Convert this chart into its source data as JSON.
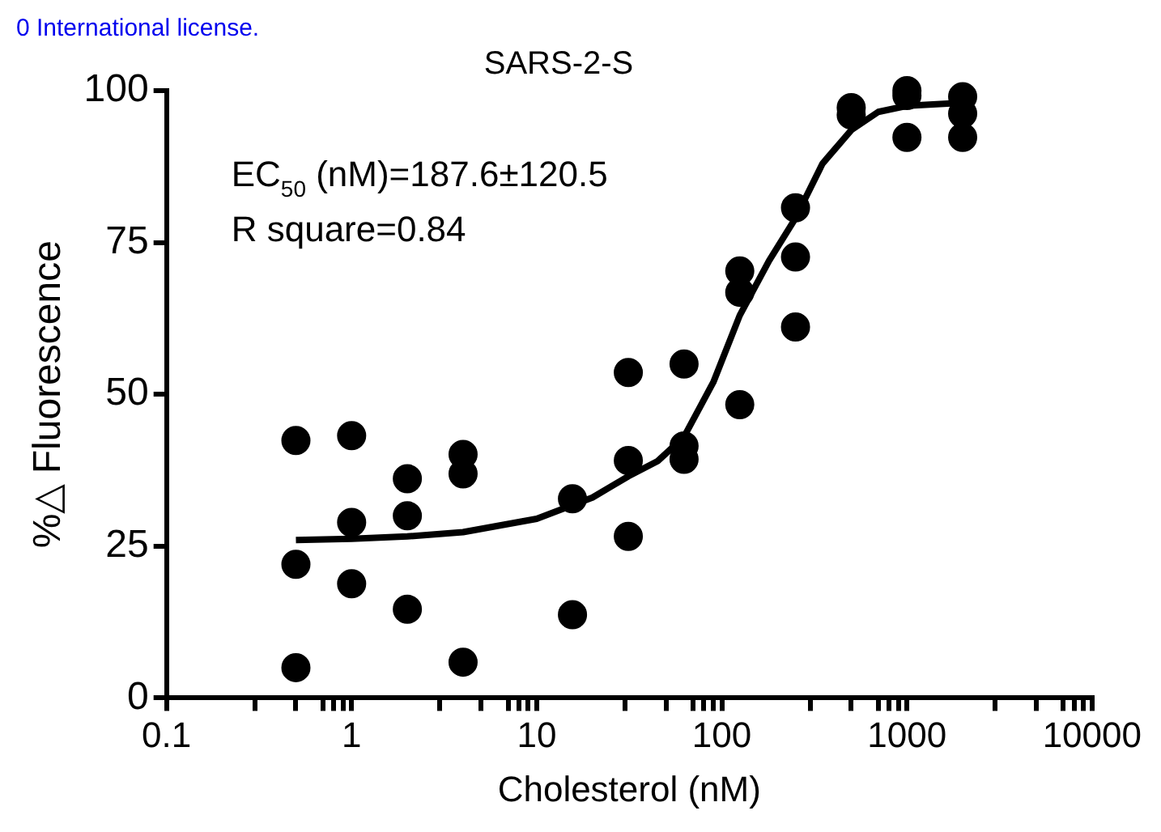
{
  "chart_data": {
    "type": "scatter",
    "title": "SARS-2-S",
    "xlabel": "Cholesterol (nM)",
    "ylabel": "%△ Fluorescence",
    "annotations": [
      "0 International license.",
      "EC$_{50}$ (nM)=187.6±120.5",
      "R square=0.84"
    ],
    "series": [
      {
        "type": "scatter",
        "color": "#000000",
        "marker": "circle",
        "x": [
          0.5,
          0.5,
          0.5,
          1,
          1,
          1,
          2,
          2,
          2,
          4,
          4,
          4,
          15.6,
          15.6,
          31.25,
          31.25,
          31.25,
          62.5,
          62.5,
          62.5,
          125,
          125,
          125,
          250,
          250,
          250,
          500,
          500,
          1000,
          1000,
          1000,
          2000,
          2000,
          2000
        ],
        "values": [
          42.4,
          22,
          5,
          43.2,
          28.9,
          18.8,
          36.1,
          30,
          14.6,
          40.1,
          36.9,
          5.9,
          32.8,
          13.7,
          53.6,
          39.1,
          26.6,
          55,
          41.5,
          39.3,
          70.3,
          66.8,
          48.3,
          80.7,
          72.6,
          61.1,
          97.2,
          96,
          100,
          99.2,
          92.3,
          99,
          96.2,
          92.3
        ]
      },
      {
        "type": "line",
        "color": "#000000",
        "marker": "none",
        "x": [
          0.5,
          1,
          2,
          4,
          10,
          20,
          31.25,
          45,
          62.5,
          90,
          125,
          180,
          250,
          350,
          500,
          700,
          1000,
          2000
        ],
        "values": [
          26,
          26.2,
          26.6,
          27.3,
          29.5,
          33,
          36.5,
          39,
          43,
          52,
          63,
          72,
          79,
          88,
          93.5,
          96.5,
          97.5,
          98
        ]
      }
    ],
    "xlim": [
      0.1,
      10000
    ],
    "xticks": [
      0.1,
      {
        "value": 0.3,
        "label": null
      },
      {
        "value": 0.5,
        "label": null
      },
      {
        "value": 0.7,
        "label": null
      },
      {
        "value": 0.8,
        "label": null
      },
      {
        "value": 0.9,
        "label": null
      },
      1,
      {
        "value": 3,
        "label": null
      },
      {
        "value": 5,
        "label": null
      },
      {
        "value": 7,
        "label": null
      },
      {
        "value": 8,
        "label": null
      },
      {
        "value": 9,
        "label": null
      },
      10,
      {
        "value": 30,
        "label": null
      },
      {
        "value": 50,
        "label": null
      },
      {
        "value": 70,
        "label": null
      },
      {
        "value": 80,
        "label": null
      },
      {
        "value": 90,
        "label": null
      },
      100,
      {
        "value": 300,
        "label": null
      },
      {
        "value": 500,
        "label": null
      },
      {
        "value": 700,
        "label": null
      },
      {
        "value": 800,
        "label": null
      },
      {
        "value": 900,
        "label": null
      },
      1000,
      {
        "value": 3000,
        "label": null
      },
      {
        "value": 5000,
        "label": null
      },
      {
        "value": 7000,
        "label": null
      },
      {
        "value": 8000,
        "label": null
      },
      {
        "value": 9000,
        "label": null
      },
      10000
    ],
    "ylim": [
      0,
      100
    ],
    "yticks": [
      0,
      25,
      50,
      75,
      100
    ],
    "log": "x",
    "grid": false
  }
}
